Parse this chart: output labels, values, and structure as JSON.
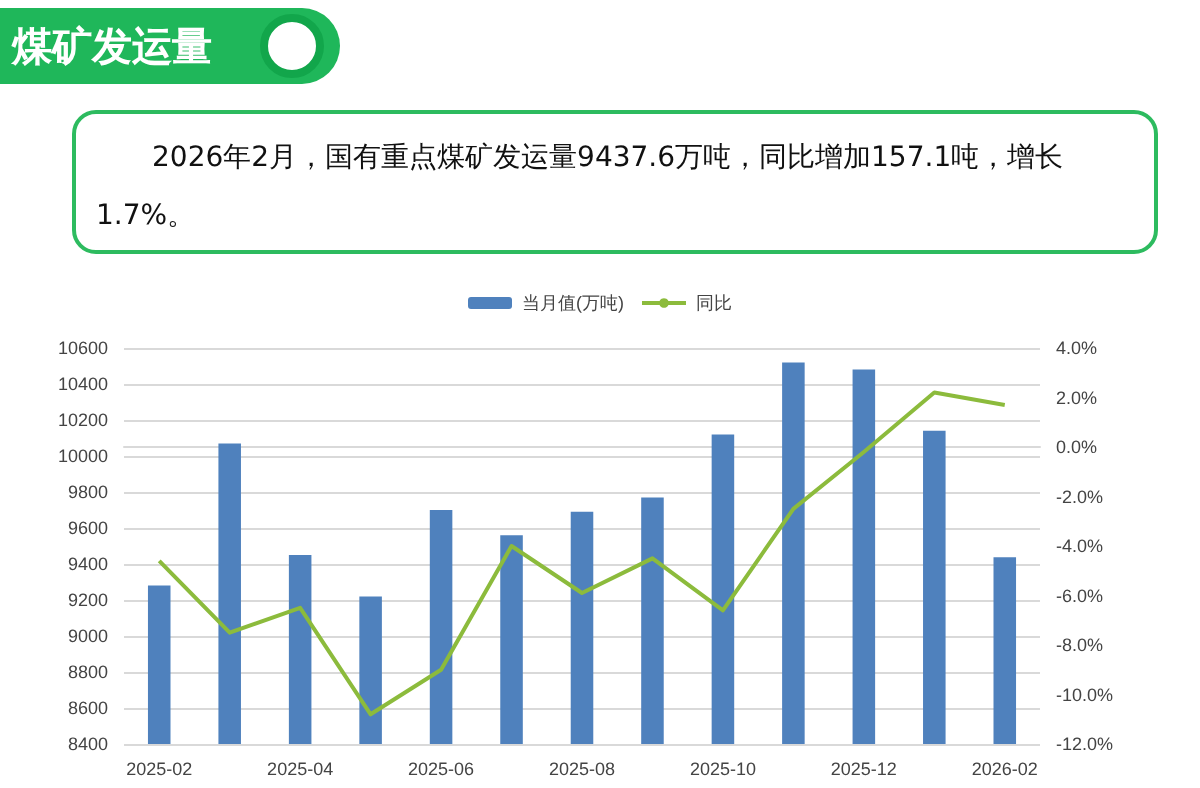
{
  "chart_data": {
    "type": "bar",
    "title": "煤矿发运量",
    "annotations": [
      "2026年2月，国有重点煤矿发运量9437.6万吨，同比增加157.1吨，增长1.7%。"
    ],
    "categories": [
      "2025-02",
      null,
      "2025-04",
      null,
      "2025-06",
      null,
      "2025-08",
      null,
      "2025-10",
      null,
      "2025-12",
      null,
      "2026-02"
    ],
    "series": [
      {
        "name": "当月值(万吨)",
        "color": "#4f81bd",
        "values": [
          9280,
          10070,
          9450,
          9220,
          9700,
          9560,
          9690,
          9770,
          10120,
          10520,
          10480,
          10140,
          9437.6
        ]
      },
      {
        "name": "同比",
        "type": "line",
        "axis": "y2",
        "color": "#8cbb3c",
        "values": [
          -4.6,
          -7.5,
          -6.5,
          -10.8,
          -9.0,
          -4.0,
          -5.9,
          -4.5,
          -6.6,
          -2.5,
          -0.2,
          2.2,
          1.7
        ]
      }
    ],
    "ylim": [
      8400,
      10600
    ],
    "yticks": [
      8400,
      8600,
      8800,
      9000,
      9200,
      9400,
      9600,
      9800,
      10000,
      10200,
      10400,
      10600
    ],
    "y2lim": [
      -12,
      4
    ],
    "y2ticks": [
      {
        "value": -12,
        "label": "-12.0%"
      },
      {
        "value": -10,
        "label": "-10.0%"
      },
      {
        "value": -8,
        "label": "-8.0%"
      },
      {
        "value": -6,
        "label": "-6.0%"
      },
      {
        "value": -4,
        "label": "-4.0%"
      },
      {
        "value": -2,
        "label": "-2.0%"
      },
      {
        "value": 0,
        "label": "0.0%"
      },
      {
        "value": 2,
        "label": "2.0%"
      },
      {
        "value": 4,
        "label": "4.0%"
      }
    ],
    "grid": "y",
    "legend": "top",
    "marker": "none",
    "line_style": "solid"
  }
}
